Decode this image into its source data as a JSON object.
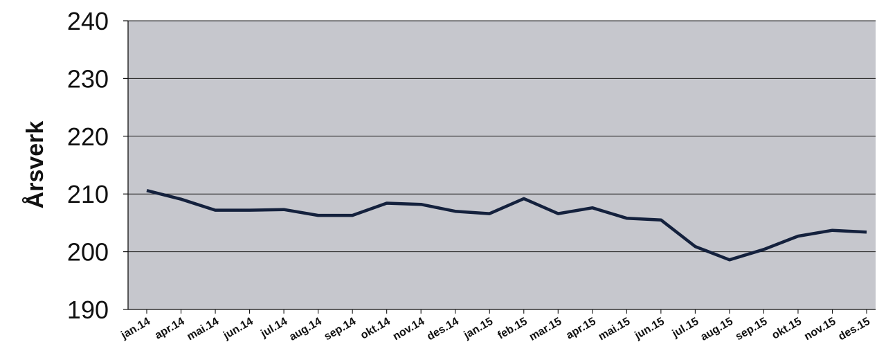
{
  "chart_data": {
    "type": "line",
    "title": "",
    "xlabel": "",
    "ylabel": "Årsverk",
    "ylim": [
      190,
      240
    ],
    "yticks": [
      190,
      200,
      210,
      220,
      230,
      240
    ],
    "grid": true,
    "legend": "none",
    "categories": [
      "jan.14",
      "apr.14",
      "mai.14",
      "jun.14",
      "jul.14",
      "aug.14",
      "sep.14",
      "okt.14",
      "nov.14",
      "des.14",
      "jan.15",
      "feb.15",
      "mar.15",
      "apr.15",
      "mai.15",
      "jun.15",
      "jul.15",
      "aug.15",
      "sep.15",
      "okt.15",
      "nov.15",
      "des.15"
    ],
    "series": [
      {
        "values": [
          210.6,
          209.1,
          207.2,
          207.2,
          207.3,
          206.3,
          206.3,
          208.4,
          208.2,
          207.0,
          206.6,
          209.2,
          206.6,
          207.6,
          205.8,
          205.5,
          200.9,
          198.6,
          200.4,
          202.7,
          203.7,
          203.4
        ]
      }
    ],
    "colors": {
      "plot_bg": "#c6c7cd",
      "line": "#14213d",
      "grid": "#1a1a1a"
    }
  }
}
